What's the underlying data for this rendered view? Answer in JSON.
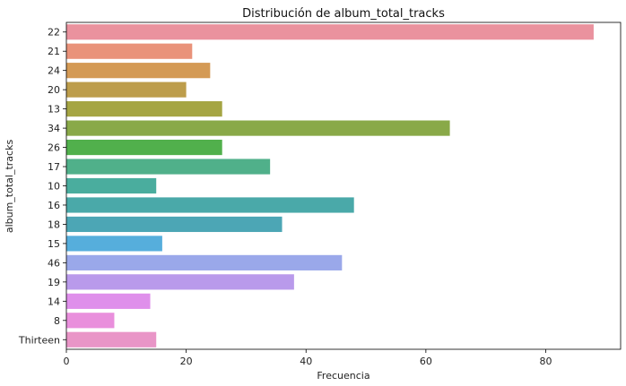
{
  "chart_data": {
    "type": "bar",
    "orientation": "horizontal",
    "title": "Distribución de album_total_tracks",
    "xlabel": "Frecuencia",
    "ylabel": "album_total_tracks",
    "categories": [
      "22",
      "21",
      "24",
      "20",
      "13",
      "34",
      "26",
      "17",
      "10",
      "16",
      "18",
      "15",
      "46",
      "19",
      "14",
      "8",
      "Thirteen"
    ],
    "values": [
      88,
      21,
      24,
      20,
      26,
      64,
      26,
      34,
      15,
      48,
      36,
      16,
      46,
      38,
      14,
      8,
      15
    ],
    "xlim": [
      0,
      92.5
    ],
    "xticks": [
      0,
      20,
      40,
      60,
      80
    ],
    "grid": false,
    "legend": "none",
    "colors": [
      "#ea929e",
      "#e9927a",
      "#d49a55",
      "#bd9d4b",
      "#a5a543",
      "#89a948",
      "#51b04c",
      "#50b08a",
      "#4aad9e",
      "#4aa9a9",
      "#4ca6b5",
      "#56aedc",
      "#9aa8ea",
      "#b99aeb",
      "#df8feb",
      "#e98fdc",
      "#e995c7"
    ]
  }
}
